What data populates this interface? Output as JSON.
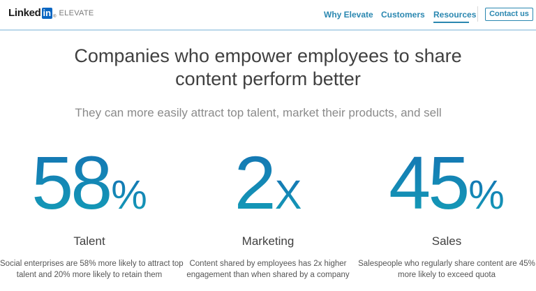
{
  "header": {
    "logo_text": "Linked",
    "logo_in": "in",
    "logo_reg": "®",
    "logo_product": "ELEVATE",
    "nav": [
      {
        "label": "Why Elevate"
      },
      {
        "label": "Customers"
      },
      {
        "label": "Resources",
        "active": true
      }
    ],
    "contact_label": "Contact us"
  },
  "headline": {
    "line1": "Companies who empower employees to share",
    "line2": "content perform better"
  },
  "subheadline": "They can more easily attract top talent, market their products, and sell",
  "stats": [
    {
      "value": "58",
      "unit": "%",
      "label": "Talent",
      "desc_line1": "Social enterprises are 58% more likely to attract top",
      "desc_line2": "talent and 20% more likely to retain them"
    },
    {
      "value": "2",
      "unit": "X",
      "label": "Marketing",
      "desc_line1": "Content shared by employees has 2x higher",
      "desc_line2": "engagement than when shared by a company"
    },
    {
      "value": "45",
      "unit": "%",
      "label": "Sales",
      "desc_line1": "Salespeople who regularly share content are 45%",
      "desc_line2": "more likely to exceed quota"
    }
  ],
  "colors": {
    "accent": "#2a87b0",
    "stat_gradient_top": "#1570b4",
    "stat_gradient_bottom": "#13a0b6",
    "header_border": "#b9d7ea"
  }
}
